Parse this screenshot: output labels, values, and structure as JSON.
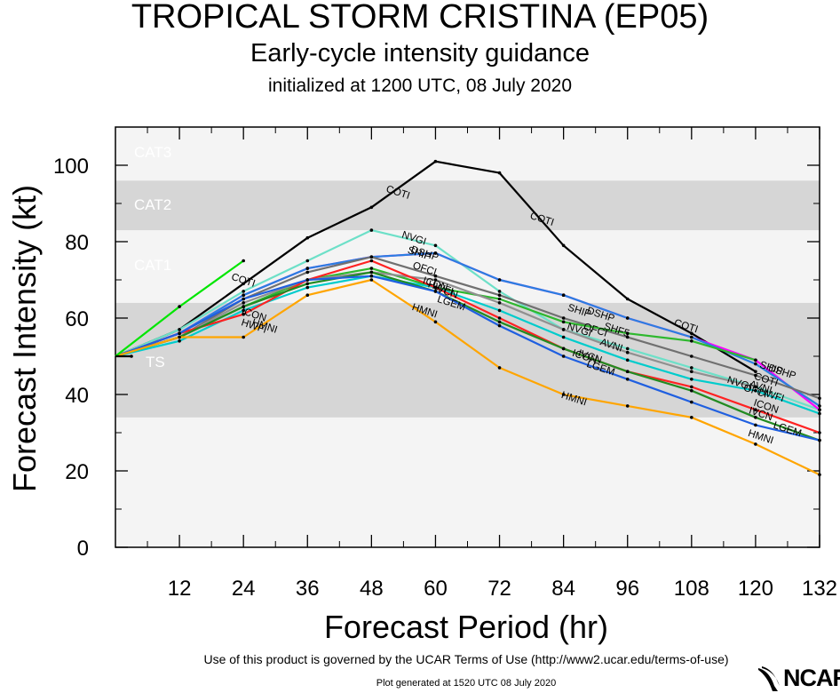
{
  "header": {
    "title": "TROPICAL STORM CRISTINA (EP05)",
    "subtitle": "Early-cycle intensity guidance",
    "initialized": "initialized at 1200 UTC, 08 July 2020"
  },
  "footer": {
    "terms": "Use of this product is governed by the UCAR Terms of Use (http://www2.ucar.edu/terms-of-use)",
    "generated": "Plot generated at 1520 UTC   08 July 2020",
    "logo_text": "NCAR"
  },
  "colors": {
    "band_dark": "#d6d6d6",
    "band_light": "#f4f4f4",
    "band_label": "#ffffff"
  },
  "chart_data": {
    "type": "line",
    "xlabel": "Forecast Period (hr)",
    "ylabel": "Forecast Intensity (kt)",
    "xlim": [
      0,
      132
    ],
    "ylim": [
      0,
      110
    ],
    "xticks": [
      12,
      24,
      36,
      48,
      60,
      72,
      84,
      96,
      108,
      120,
      132
    ],
    "yticks": [
      0,
      20,
      40,
      60,
      80,
      100
    ],
    "intensity_bands": [
      {
        "label": "TS",
        "from": 34,
        "to": 64,
        "shade": "dark"
      },
      {
        "label": "CAT1",
        "from": 64,
        "to": 83,
        "shade": "light"
      },
      {
        "label": "CAT2",
        "from": 83,
        "to": 96,
        "shade": "dark"
      },
      {
        "label": "CAT3",
        "from": 96,
        "to": 110,
        "shade": "light"
      }
    ],
    "series": [
      {
        "name": "COTI",
        "color": "#000000",
        "points": [
          [
            0,
            50
          ],
          [
            12,
            57
          ],
          [
            24,
            69
          ],
          [
            36,
            81
          ],
          [
            48,
            89
          ],
          [
            60,
            101
          ],
          [
            72,
            98
          ],
          [
            84,
            79
          ],
          [
            96,
            65
          ],
          [
            108,
            56
          ],
          [
            120,
            46
          ]
        ],
        "labels": [
          [
            24,
            70
          ],
          [
            53,
            93
          ],
          [
            80,
            86
          ],
          [
            107,
            58
          ],
          [
            122,
            44
          ]
        ]
      },
      {
        "name": "NVGI",
        "color": "#6de0c8",
        "points": [
          [
            0,
            50
          ],
          [
            12,
            57
          ],
          [
            24,
            67
          ],
          [
            36,
            75
          ],
          [
            48,
            83
          ],
          [
            60,
            79
          ],
          [
            72,
            67
          ],
          [
            84,
            57
          ],
          [
            96,
            52
          ],
          [
            108,
            47
          ],
          [
            120,
            42
          ],
          [
            132,
            36
          ]
        ],
        "labels": [
          [
            56,
            81
          ],
          [
            87,
            57
          ],
          [
            117,
            43
          ]
        ]
      },
      {
        "name": "DSHP",
        "color": "#ff00ff",
        "points": [
          [
            0,
            50
          ],
          [
            12,
            56
          ],
          [
            24,
            66
          ],
          [
            36,
            73
          ],
          [
            48,
            76
          ],
          [
            60,
            77
          ],
          [
            72,
            70
          ],
          [
            84,
            66
          ],
          [
            96,
            60
          ],
          [
            108,
            55
          ],
          [
            120,
            49
          ],
          [
            132,
            36
          ]
        ],
        "labels": [
          [
            58,
            77
          ],
          [
            91,
            61
          ],
          [
            125,
            46
          ]
        ]
      },
      {
        "name": "SHIP",
        "color": "#2a7fe0",
        "points": [
          [
            0,
            50
          ],
          [
            12,
            56
          ],
          [
            24,
            66
          ],
          [
            36,
            73
          ],
          [
            48,
            76
          ],
          [
            60,
            77
          ],
          [
            72,
            70
          ],
          [
            84,
            66
          ],
          [
            96,
            60
          ],
          [
            108,
            55
          ],
          [
            120,
            48
          ],
          [
            132,
            37
          ]
        ],
        "labels": [
          [
            57,
            77
          ],
          [
            87,
            62
          ],
          [
            123,
            47
          ]
        ]
      },
      {
        "name": "OFCI",
        "color": "#707070",
        "points": [
          [
            0,
            50
          ],
          [
            12,
            55
          ],
          [
            24,
            65
          ],
          [
            36,
            72
          ],
          [
            48,
            76
          ],
          [
            60,
            71
          ],
          [
            72,
            66
          ],
          [
            84,
            60
          ],
          [
            96,
            55
          ],
          [
            108,
            50
          ],
          [
            120,
            45
          ],
          [
            132,
            39
          ]
        ],
        "labels": [
          [
            58,
            73
          ],
          [
            90,
            57
          ],
          [
            120,
            41
          ]
        ]
      },
      {
        "name": "SHF5",
        "color": "#2eb82e",
        "points": [
          [
            0,
            50
          ],
          [
            12,
            55
          ],
          [
            24,
            63
          ],
          [
            36,
            70
          ],
          [
            48,
            73
          ],
          [
            60,
            68
          ],
          [
            72,
            65
          ],
          [
            84,
            59
          ],
          [
            96,
            56
          ],
          [
            108,
            54
          ],
          [
            120,
            49
          ]
        ],
        "labels": [
          [
            94,
            57
          ]
        ]
      },
      {
        "name": "AVNI",
        "color": "#909090",
        "points": [
          [
            0,
            50
          ],
          [
            12,
            55
          ],
          [
            24,
            64
          ],
          [
            36,
            70
          ],
          [
            48,
            72
          ],
          [
            60,
            70
          ],
          [
            72,
            64
          ],
          [
            84,
            57
          ],
          [
            96,
            51
          ],
          [
            108,
            46
          ],
          [
            120,
            42
          ]
        ],
        "labels": [
          [
            93,
            53
          ],
          [
            121,
            42
          ]
        ]
      },
      {
        "name": "HWFI",
        "color": "#00cccc",
        "points": [
          [
            0,
            50
          ],
          [
            12,
            54
          ],
          [
            24,
            62
          ],
          [
            36,
            68
          ],
          [
            48,
            71
          ],
          [
            60,
            68
          ],
          [
            72,
            62
          ],
          [
            84,
            55
          ],
          [
            96,
            49
          ],
          [
            108,
            44
          ],
          [
            120,
            41
          ],
          [
            132,
            35
          ]
        ],
        "labels": [
          [
            26,
            58
          ],
          [
            61,
            68
          ],
          [
            123,
            40
          ]
        ]
      },
      {
        "name": "ICON",
        "color": "#ff2222",
        "points": [
          [
            0,
            50
          ],
          [
            12,
            56
          ],
          [
            24,
            61
          ],
          [
            36,
            70
          ],
          [
            48,
            75
          ],
          [
            60,
            68
          ],
          [
            72,
            60
          ],
          [
            84,
            52
          ],
          [
            96,
            46
          ],
          [
            108,
            42
          ],
          [
            120,
            36
          ],
          [
            132,
            30
          ]
        ],
        "labels": [
          [
            26,
            61
          ],
          [
            60,
            69
          ],
          [
            88,
            50
          ],
          [
            122,
            37
          ]
        ]
      },
      {
        "name": "IVCN",
        "color": "#228b22",
        "points": [
          [
            0,
            50
          ],
          [
            12,
            55
          ],
          [
            24,
            63
          ],
          [
            36,
            69
          ],
          [
            48,
            72
          ],
          [
            60,
            67
          ],
          [
            72,
            59
          ],
          [
            84,
            52
          ],
          [
            96,
            46
          ],
          [
            108,
            41
          ],
          [
            120,
            34
          ],
          [
            132,
            28
          ]
        ],
        "labels": [
          [
            62,
            67
          ],
          [
            89,
            50
          ],
          [
            121,
            35
          ]
        ]
      },
      {
        "name": "LGEM",
        "color": "#1f5fe0",
        "points": [
          [
            0,
            50
          ],
          [
            12,
            56
          ],
          [
            24,
            65
          ],
          [
            36,
            70
          ],
          [
            48,
            71
          ],
          [
            60,
            67
          ],
          [
            72,
            58
          ],
          [
            84,
            50
          ],
          [
            96,
            44
          ],
          [
            108,
            38
          ],
          [
            120,
            32
          ],
          [
            132,
            28
          ]
        ],
        "labels": [
          [
            63,
            64
          ],
          [
            91,
            47
          ],
          [
            126,
            31
          ]
        ]
      },
      {
        "name": "HMNI",
        "color": "#ffa500",
        "points": [
          [
            0,
            50
          ],
          [
            12,
            55
          ],
          [
            24,
            55
          ],
          [
            36,
            66
          ],
          [
            48,
            70
          ],
          [
            60,
            59
          ],
          [
            72,
            47
          ],
          [
            84,
            40
          ],
          [
            96,
            37
          ],
          [
            108,
            34
          ],
          [
            120,
            27
          ],
          [
            132,
            19
          ]
        ],
        "labels": [
          [
            28,
            58
          ],
          [
            58,
            62
          ],
          [
            86,
            39
          ],
          [
            121,
            29
          ]
        ]
      },
      {
        "name": "",
        "color": "#00e600",
        "points": [
          [
            0,
            50
          ],
          [
            12,
            63
          ],
          [
            24,
            75
          ]
        ],
        "labels": []
      },
      {
        "name": "",
        "color": "#000000",
        "points": [
          [
            0,
            50
          ],
          [
            3,
            50
          ]
        ],
        "labels": []
      }
    ]
  }
}
